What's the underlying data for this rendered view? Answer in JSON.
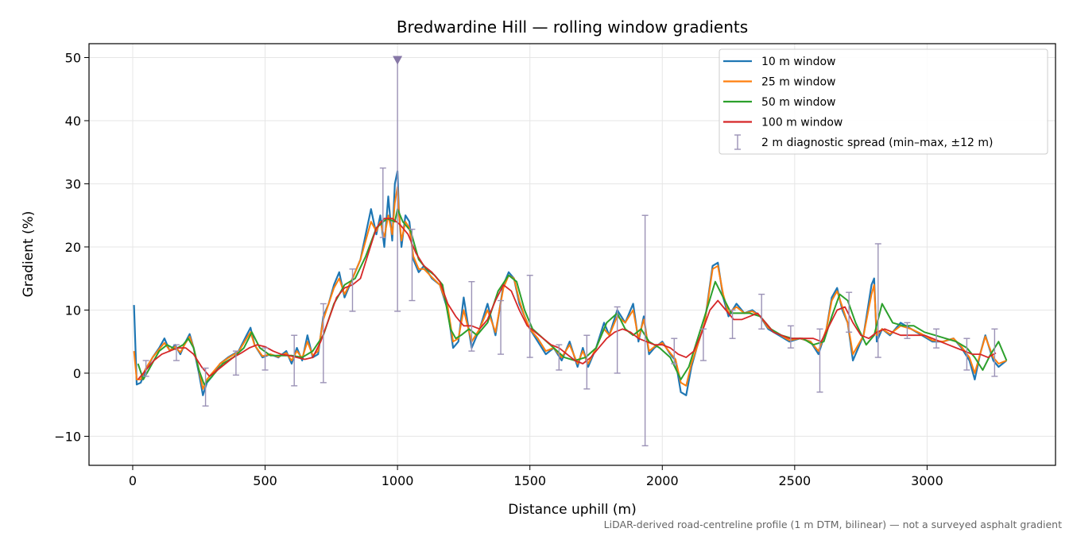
{
  "chart_data": {
    "type": "line",
    "title": "Bredwardine Hill — rolling window gradients",
    "xlabel": "Distance uphill (m)",
    "ylabel": "Gradient (%)",
    "xlim": [
      -165,
      3485
    ],
    "ylim": [
      -14.6,
      52.2
    ],
    "xticks": [
      0,
      500,
      1000,
      1500,
      2000,
      2500,
      3000
    ],
    "yticks": [
      -10,
      0,
      10,
      20,
      30,
      40,
      50
    ],
    "ytick_labels": [
      "−10",
      "0",
      "10",
      "20",
      "30",
      "40",
      "50"
    ],
    "grid": true,
    "legend_position": "top-right",
    "footnote": "LiDAR-derived road-centreline profile (1 m DTM, bilinear) — not a surveyed asphalt gradient",
    "series": [
      {
        "name": "10 m window",
        "color": "#1f77b4",
        "x": [
          5,
          15,
          30,
          50,
          75,
          100,
          120,
          140,
          160,
          180,
          200,
          215,
          230,
          250,
          265,
          280,
          300,
          330,
          360,
          400,
          430,
          445,
          460,
          490,
          520,
          550,
          580,
          600,
          620,
          640,
          660,
          680,
          700,
          720,
          740,
          760,
          780,
          800,
          830,
          860,
          880,
          900,
          920,
          935,
          950,
          965,
          980,
          990,
          1000,
          1005,
          1015,
          1030,
          1045,
          1060,
          1080,
          1100,
          1130,
          1160,
          1190,
          1210,
          1230,
          1250,
          1280,
          1310,
          1340,
          1370,
          1400,
          1420,
          1440,
          1460,
          1480,
          1500,
          1530,
          1560,
          1590,
          1620,
          1650,
          1680,
          1700,
          1720,
          1750,
          1780,
          1800,
          1830,
          1860,
          1890,
          1910,
          1930,
          1950,
          1970,
          2000,
          2030,
          2050,
          2070,
          2090,
          2110,
          2130,
          2160,
          2190,
          2210,
          2230,
          2250,
          2280,
          2310,
          2340,
          2370,
          2400,
          2440,
          2480,
          2520,
          2560,
          2590,
          2620,
          2640,
          2660,
          2680,
          2700,
          2720,
          2760,
          2790,
          2800,
          2810,
          2830,
          2860,
          2900,
          2940,
          2980,
          3020,
          3060,
          3100,
          3130,
          3160,
          3180,
          3200,
          3220,
          3250,
          3270,
          3300
        ],
        "y": [
          10.8,
          -1.8,
          -1.5,
          0.5,
          2.5,
          4,
          5.5,
          3.5,
          4.5,
          3,
          5,
          6.2,
          4,
          0,
          -3.5,
          -1.5,
          -0.5,
          1.5,
          2.5,
          3.5,
          6,
          7.2,
          4.5,
          2.5,
          3,
          2.5,
          3.5,
          1.5,
          4,
          2,
          6,
          2.5,
          3,
          9,
          11,
          14,
          16,
          12,
          15,
          18,
          22,
          26,
          22,
          25,
          20,
          28,
          21,
          30,
          32,
          26,
          20,
          25,
          24,
          18,
          16,
          17,
          15,
          14,
          10,
          4,
          5,
          12,
          4,
          7,
          11,
          6,
          14,
          16,
          15,
          11,
          9,
          7,
          5,
          3,
          4,
          2,
          5,
          1,
          4,
          1,
          4,
          8,
          6,
          10,
          8,
          11,
          5,
          9,
          3,
          4,
          5,
          3,
          2,
          -3,
          -3.5,
          1,
          4,
          8,
          17,
          17.5,
          12,
          9,
          11,
          9.5,
          10,
          9,
          7,
          6,
          5,
          5.5,
          5,
          3,
          7,
          12,
          13.5,
          10,
          8,
          2,
          6,
          14,
          15,
          5,
          7,
          6,
          8,
          7,
          6,
          5,
          5,
          5.5,
          4,
          2,
          -1,
          3,
          6,
          2,
          1,
          2
        ]
      },
      {
        "name": "25 m window",
        "color": "#ff7f0e",
        "x": [
          5,
          15,
          30,
          50,
          75,
          100,
          120,
          140,
          160,
          180,
          200,
          215,
          230,
          250,
          265,
          280,
          300,
          330,
          360,
          400,
          430,
          445,
          460,
          490,
          520,
          550,
          580,
          600,
          620,
          640,
          660,
          680,
          700,
          720,
          740,
          760,
          780,
          800,
          830,
          860,
          880,
          900,
          920,
          935,
          950,
          965,
          980,
          990,
          1000,
          1005,
          1015,
          1030,
          1045,
          1060,
          1080,
          1100,
          1130,
          1160,
          1190,
          1210,
          1230,
          1250,
          1280,
          1310,
          1340,
          1370,
          1400,
          1420,
          1440,
          1460,
          1480,
          1500,
          1530,
          1560,
          1590,
          1620,
          1650,
          1680,
          1700,
          1720,
          1750,
          1780,
          1800,
          1830,
          1860,
          1890,
          1910,
          1930,
          1950,
          1970,
          2000,
          2030,
          2050,
          2070,
          2090,
          2110,
          2130,
          2160,
          2190,
          2210,
          2230,
          2250,
          2280,
          2310,
          2340,
          2370,
          2400,
          2440,
          2480,
          2520,
          2560,
          2590,
          2620,
          2640,
          2660,
          2680,
          2700,
          2720,
          2760,
          2790,
          2800,
          2810,
          2830,
          2860,
          2900,
          2940,
          2980,
          3020,
          3060,
          3100,
          3130,
          3160,
          3180,
          3200,
          3220,
          3250,
          3270,
          3300
        ],
        "y": [
          3.5,
          -1,
          -1,
          0.8,
          2.5,
          3.8,
          4.8,
          3.6,
          4.2,
          3.3,
          4.8,
          5.8,
          4,
          0.5,
          -2.5,
          -1,
          0,
          1.5,
          2.4,
          3.4,
          5.5,
          6.5,
          4.5,
          2.7,
          3,
          2.6,
          3.2,
          2,
          3.5,
          2.4,
          5,
          2.8,
          3.5,
          8.5,
          11,
          13.5,
          15,
          12.5,
          15,
          18,
          21,
          24,
          22.5,
          24,
          21.5,
          25,
          22,
          27,
          29.5,
          25.5,
          21,
          24,
          23,
          18.5,
          16.5,
          16.5,
          15.2,
          14,
          10.5,
          5,
          5.5,
          10,
          5,
          7,
          10,
          6.5,
          13.5,
          15.5,
          15,
          11.5,
          9,
          7,
          5.5,
          3.5,
          4,
          2.5,
          4.5,
          1.5,
          3.5,
          1.5,
          4,
          7,
          6,
          9,
          8,
          10,
          5.5,
          8.5,
          3.5,
          4.2,
          4.8,
          3.2,
          2.2,
          -1.5,
          -2,
          1.5,
          4,
          8,
          16.5,
          17,
          12.5,
          9.5,
          10.5,
          9.5,
          9.8,
          9,
          7.2,
          6.2,
          5.2,
          5.5,
          5,
          3.5,
          7,
          11.5,
          13,
          10.5,
          8,
          3,
          6,
          12.5,
          14,
          6,
          7,
          6.2,
          7.5,
          7,
          6.2,
          5.2,
          5,
          5.5,
          4.2,
          2.5,
          0,
          3,
          5.8,
          2.5,
          1.5,
          2
        ]
      },
      {
        "name": "50 m window",
        "color": "#2ca02c",
        "x": [
          20,
          40,
          60,
          80,
          100,
          130,
          160,
          190,
          210,
          230,
          250,
          270,
          300,
          340,
          380,
          420,
          450,
          480,
          520,
          560,
          600,
          640,
          680,
          720,
          760,
          800,
          840,
          880,
          920,
          960,
          990,
          1000,
          1020,
          1050,
          1080,
          1110,
          1140,
          1170,
          1200,
          1220,
          1240,
          1270,
          1300,
          1340,
          1380,
          1420,
          1450,
          1480,
          1510,
          1550,
          1590,
          1630,
          1670,
          1710,
          1750,
          1790,
          1830,
          1860,
          1890,
          1920,
          1950,
          1990,
          2030,
          2070,
          2100,
          2130,
          2160,
          2200,
          2230,
          2260,
          2290,
          2330,
          2370,
          2410,
          2450,
          2490,
          2530,
          2570,
          2610,
          2640,
          2670,
          2700,
          2730,
          2770,
          2800,
          2830,
          2870,
          2910,
          2950,
          2990,
          3030,
          3070,
          3110,
          3150,
          3180,
          3210,
          3240,
          3270,
          3300
        ],
        "y": [
          1.5,
          -1,
          0.5,
          2,
          3.5,
          4.5,
          3.8,
          4.5,
          5.5,
          4,
          0.5,
          -1.8,
          -0.5,
          1.5,
          2.5,
          4,
          6.5,
          4,
          2.8,
          2.8,
          2.8,
          2.5,
          3.5,
          6,
          11,
          14,
          15,
          18.5,
          23,
          24.5,
          24,
          26,
          24,
          22.5,
          18,
          16.5,
          15.5,
          14,
          7,
          5.5,
          6,
          7,
          6,
          8,
          13,
          15.5,
          14.5,
          10,
          7,
          5.5,
          4,
          2.5,
          2,
          2.5,
          4,
          8,
          9.5,
          7,
          6,
          7,
          5,
          4,
          2.5,
          -1,
          1,
          5,
          9,
          14.5,
          12,
          9.5,
          9.5,
          9.5,
          9,
          7,
          6,
          5.5,
          5.5,
          4.5,
          5,
          9,
          12.5,
          11.5,
          8,
          4.5,
          6,
          11,
          8,
          7.5,
          7.5,
          6.5,
          6,
          5.5,
          5,
          4,
          2.5,
          0.5,
          3,
          5,
          2
        ]
      },
      {
        "name": "100 m window",
        "color": "#d62728",
        "x": [
          20,
          50,
          80,
          110,
          140,
          170,
          200,
          230,
          260,
          290,
          320,
          350,
          380,
          410,
          440,
          470,
          500,
          530,
          560,
          590,
          620,
          650,
          680,
          710,
          740,
          770,
          800,
          830,
          860,
          890,
          920,
          950,
          980,
          1010,
          1040,
          1070,
          1100,
          1130,
          1160,
          1190,
          1220,
          1250,
          1280,
          1310,
          1340,
          1370,
          1400,
          1430,
          1460,
          1490,
          1520,
          1550,
          1580,
          1610,
          1640,
          1670,
          1700,
          1730,
          1760,
          1790,
          1820,
          1850,
          1880,
          1910,
          1940,
          1970,
          2000,
          2030,
          2060,
          2090,
          2120,
          2150,
          2180,
          2210,
          2240,
          2270,
          2300,
          2330,
          2360,
          2390,
          2420,
          2450,
          2480,
          2510,
          2540,
          2570,
          2600,
          2630,
          2660,
          2690,
          2720,
          2750,
          2780,
          2810,
          2840,
          2870,
          2900,
          2930,
          2960,
          2990,
          3020,
          3050,
          3080,
          3110,
          3140,
          3170,
          3200,
          3230,
          3260
        ],
        "y": [
          -1,
          0.5,
          2,
          3,
          3.5,
          4,
          4,
          3,
          1,
          -0.5,
          0.5,
          1.5,
          2.5,
          3.2,
          4,
          4.5,
          4.2,
          3.5,
          3,
          2.8,
          2.5,
          2.2,
          2.5,
          5,
          8.5,
          12,
          13.5,
          14,
          15,
          19,
          23,
          24.5,
          24.5,
          23.5,
          22,
          19,
          17,
          16,
          14.5,
          11,
          9,
          7.5,
          7.5,
          7,
          8.5,
          11.5,
          14,
          13,
          10,
          7.5,
          6.5,
          5.5,
          4.5,
          4,
          3,
          2,
          1.5,
          2.5,
          4,
          5.5,
          6.5,
          7,
          6.5,
          5.5,
          5,
          4.5,
          4.5,
          4,
          3,
          2.5,
          3.5,
          6.5,
          10,
          11.5,
          10,
          8.5,
          8.5,
          9,
          9.5,
          8,
          6.5,
          6,
          5.5,
          5.5,
          5.5,
          5.5,
          5,
          7.5,
          10,
          10.5,
          8,
          6,
          5.5,
          6.5,
          7,
          6.5,
          6,
          6,
          6,
          6,
          5.5,
          5,
          4.5,
          4,
          3.5,
          3,
          3,
          2.5,
          3.2
        ]
      }
    ],
    "diagnostic_spread": {
      "name": "2 m diagnostic spread (min–max, ±12 m)",
      "color": "#9b92b6",
      "points": [
        {
          "x": 50,
          "min": -0.5,
          "max": 2
        },
        {
          "x": 165,
          "min": 2,
          "max": 4.5
        },
        {
          "x": 275,
          "min": -5.2,
          "max": 0.8
        },
        {
          "x": 390,
          "min": -0.3,
          "max": 3.5
        },
        {
          "x": 500,
          "min": 0.5,
          "max": 4
        },
        {
          "x": 610,
          "min": -2,
          "max": 6
        },
        {
          "x": 720,
          "min": -1.5,
          "max": 11
        },
        {
          "x": 830,
          "min": 9.8,
          "max": 16.5
        },
        {
          "x": 945,
          "min": 21.5,
          "max": 32.5
        },
        {
          "x": 1000,
          "min": 9.8,
          "max": 49.5
        },
        {
          "x": 1055,
          "min": 11.5,
          "max": 22.8
        },
        {
          "x": 1280,
          "min": 3.5,
          "max": 14.5
        },
        {
          "x": 1390,
          "min": 3,
          "max": 11.5
        },
        {
          "x": 1500,
          "min": 2.5,
          "max": 15.5
        },
        {
          "x": 1610,
          "min": 0.5,
          "max": 4.5
        },
        {
          "x": 1715,
          "min": -2.5,
          "max": 6
        },
        {
          "x": 1830,
          "min": 0,
          "max": 10.5
        },
        {
          "x": 1935,
          "min": -11.5,
          "max": 25
        },
        {
          "x": 2045,
          "min": 1.5,
          "max": 5.5
        },
        {
          "x": 2155,
          "min": 2,
          "max": 7
        },
        {
          "x": 2265,
          "min": 5.5,
          "max": 10
        },
        {
          "x": 2375,
          "min": 7,
          "max": 12.5
        },
        {
          "x": 2485,
          "min": 4,
          "max": 7.5
        },
        {
          "x": 2595,
          "min": -3,
          "max": 7
        },
        {
          "x": 2705,
          "min": 6.5,
          "max": 12.8
        },
        {
          "x": 2815,
          "min": 2.5,
          "max": 20.5
        },
        {
          "x": 2925,
          "min": 5.5,
          "max": 8
        },
        {
          "x": 3035,
          "min": 4,
          "max": 7
        },
        {
          "x": 3150,
          "min": 0.5,
          "max": 5.5
        },
        {
          "x": 3255,
          "min": -0.5,
          "max": 7
        }
      ]
    }
  }
}
